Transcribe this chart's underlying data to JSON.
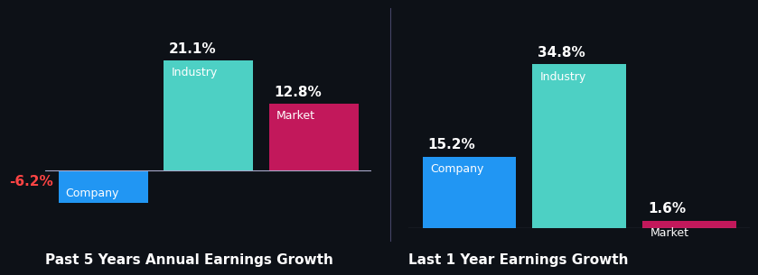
{
  "background_color": "#0d1117",
  "group1_title": "Past 5 Years Annual Earnings Growth",
  "group2_title": "Last 1 Year Earnings Growth",
  "group1": {
    "Company": -6.2,
    "Industry": 21.1,
    "Market": 12.8
  },
  "group2": {
    "Company": 15.2,
    "Industry": 34.8,
    "Market": 1.6
  },
  "colors": {
    "Company": "#2196f3",
    "Industry": "#4dd0c4",
    "Market": "#c2185b"
  },
  "label_color_negative": "#ff4444",
  "label_color_positive": "#ffffff",
  "title_color": "#ffffff",
  "title_fontsize": 11,
  "value_fontsize": 11,
  "bar_label_fontsize": 9,
  "separator_color": "#3a3a5c",
  "baseline_color": "#aaaacc"
}
